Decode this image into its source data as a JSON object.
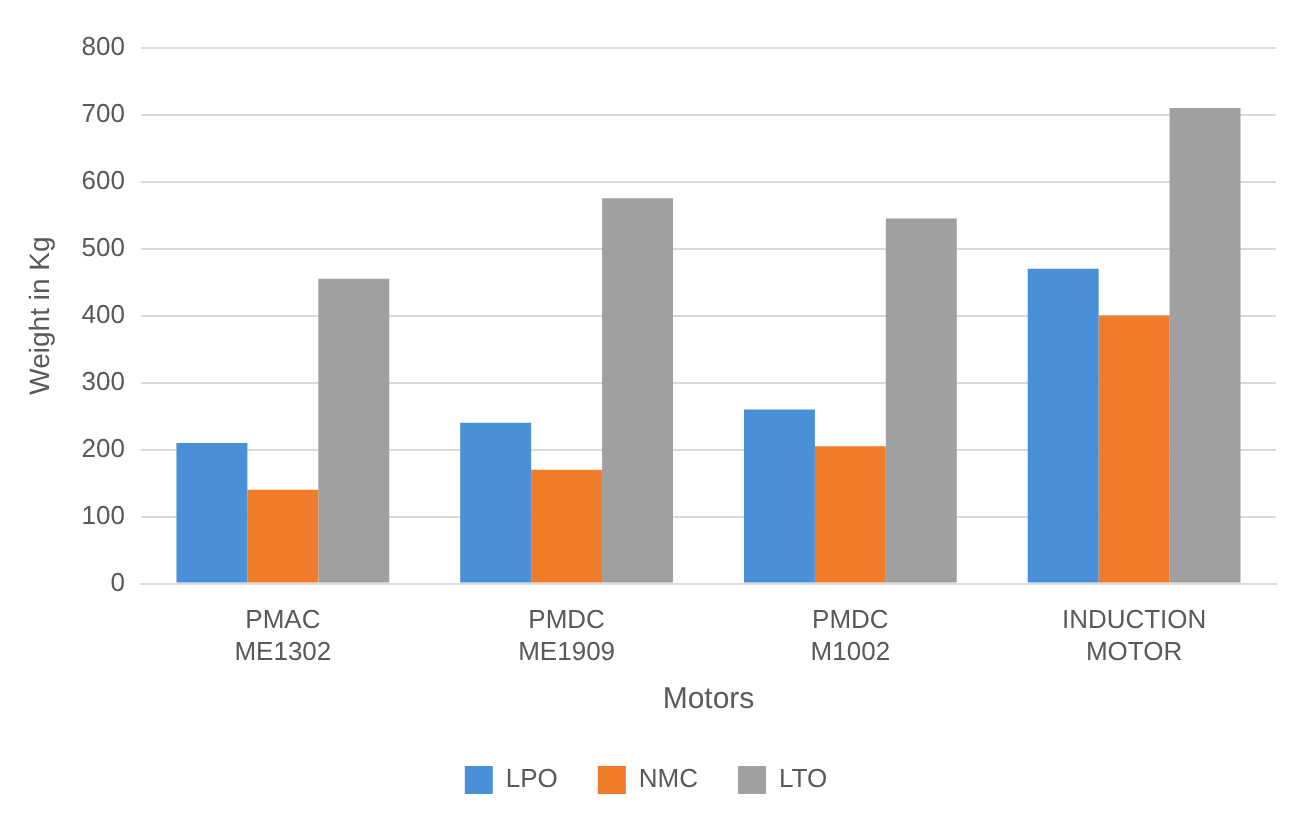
{
  "chart_data": {
    "type": "bar",
    "xlabel": "Motors",
    "ylabel": "Weight in Kg",
    "categories": [
      "PMAC ME1302",
      "PMDC ME1909",
      "PMDC M1002",
      "INDUCTION MOTOR"
    ],
    "series": [
      {
        "name": "LPO",
        "color": "#4a90d9",
        "values": [
          210,
          240,
          260,
          470
        ]
      },
      {
        "name": "NMC",
        "color": "#f07b2a",
        "values": [
          140,
          170,
          205,
          400
        ]
      },
      {
        "name": "LTO",
        "color": "#a0a0a0",
        "values": [
          455,
          575,
          545,
          710
        ]
      }
    ],
    "ylim": [
      0,
      800
    ],
    "yticks": [
      0,
      100,
      200,
      300,
      400,
      500,
      600,
      700,
      800
    ],
    "grid": "y",
    "legend": "bottom"
  }
}
